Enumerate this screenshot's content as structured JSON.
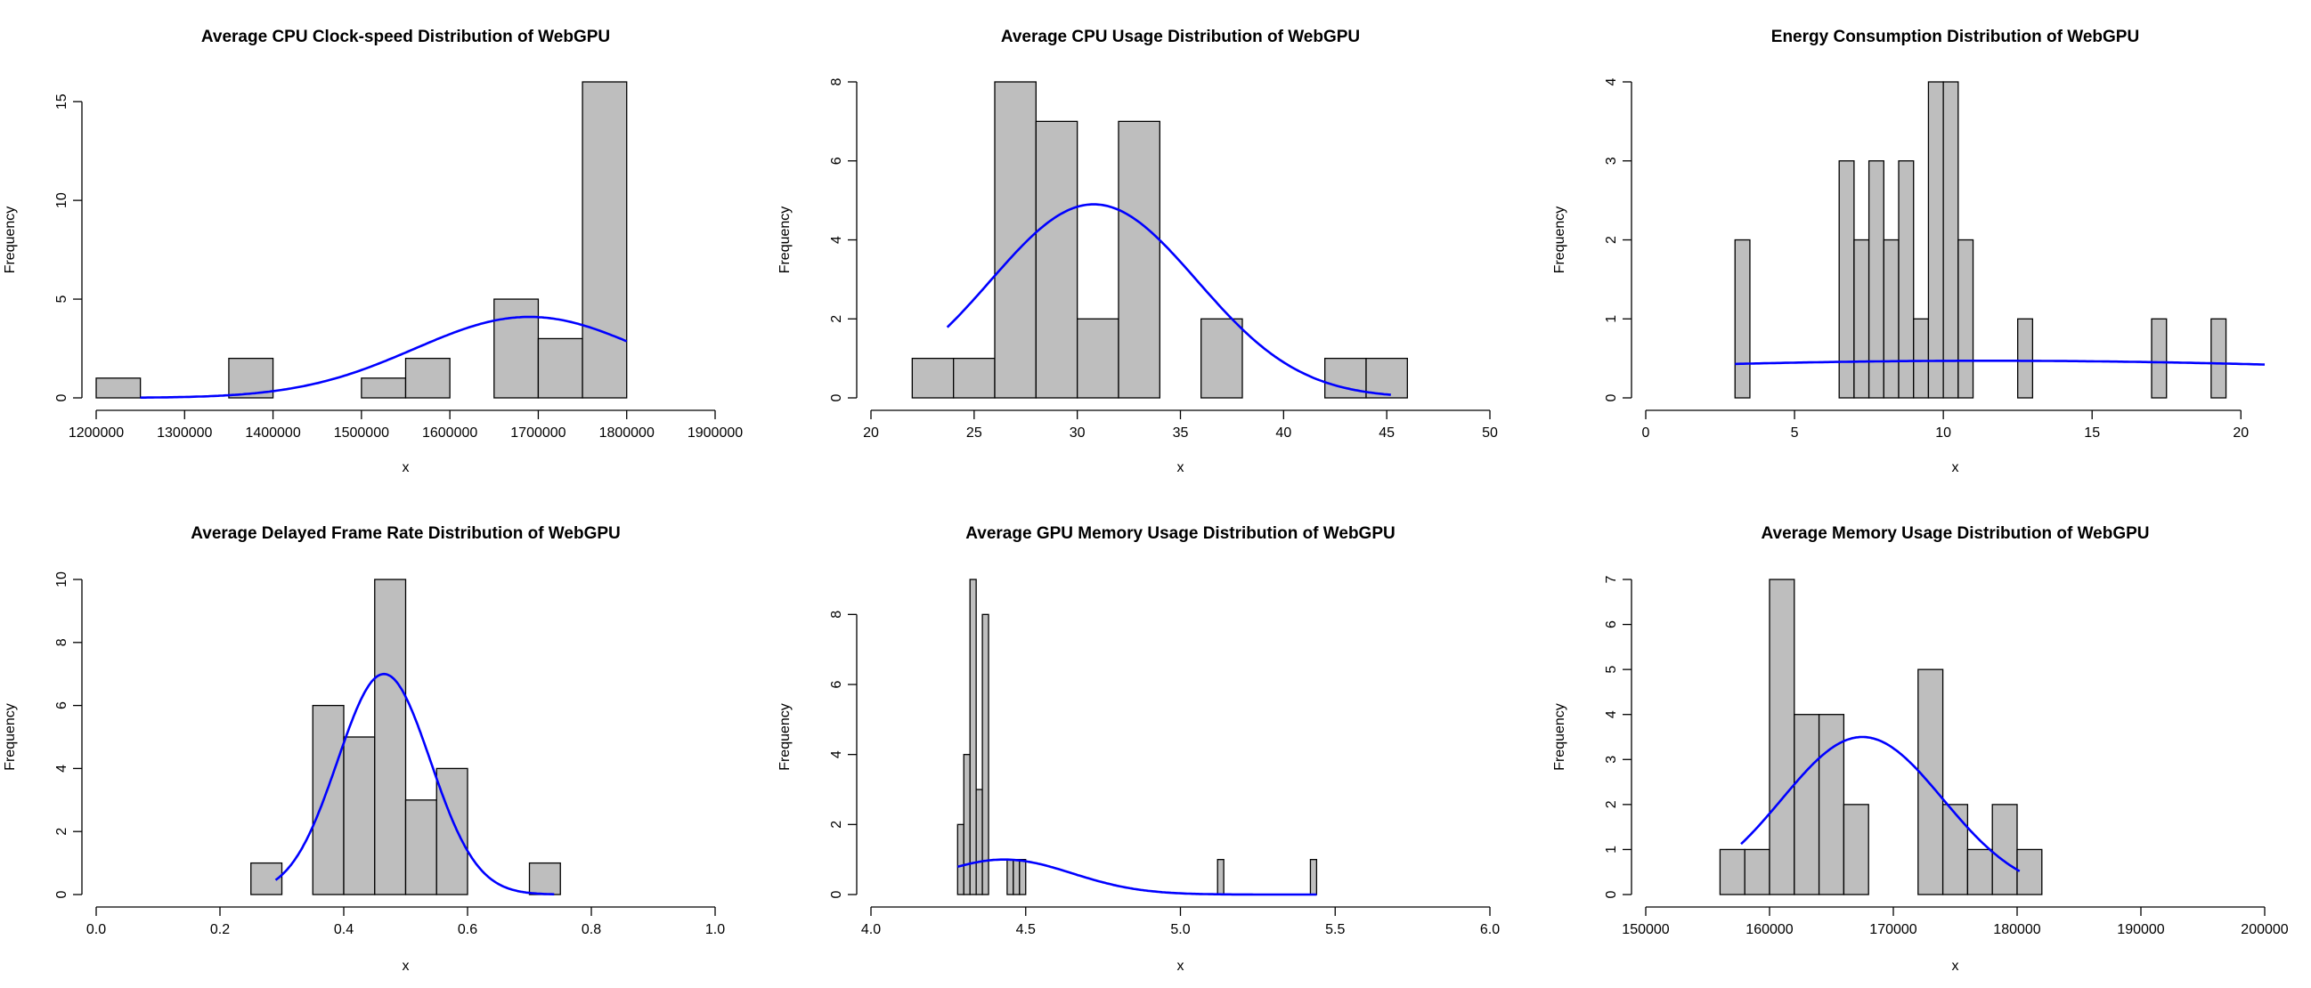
{
  "chart_data": [
    {
      "type": "bar",
      "title": "Average CPU Clock-speed Distribution of WebGPU",
      "xlabel": "x",
      "ylabel": "Frequency",
      "xlim": [
        1200000,
        1900000
      ],
      "ylim": [
        0,
        16
      ],
      "xticks": [
        1200000,
        1300000,
        1400000,
        1500000,
        1600000,
        1700000,
        1800000,
        1900000
      ],
      "yticks": [
        0,
        5,
        10,
        15
      ],
      "bins": [
        {
          "x0": 1200000,
          "x1": 1250000,
          "count": 1
        },
        {
          "x0": 1350000,
          "x1": 1400000,
          "count": 2
        },
        {
          "x0": 1500000,
          "x1": 1550000,
          "count": 1
        },
        {
          "x0": 1550000,
          "x1": 1600000,
          "count": 2
        },
        {
          "x0": 1650000,
          "x1": 1700000,
          "count": 5
        },
        {
          "x0": 1700000,
          "x1": 1750000,
          "count": 3
        },
        {
          "x0": 1750000,
          "x1": 1800000,
          "count": 16
        }
      ],
      "normal_curve": {
        "mean": 1690000,
        "sd": 130000,
        "peak": 4.1,
        "from": 1250000,
        "to": 1800000
      }
    },
    {
      "type": "bar",
      "title": "Average CPU Usage Distribution of WebGPU",
      "xlabel": "x",
      "ylabel": "Frequency",
      "xlim": [
        20,
        50
      ],
      "ylim": [
        0,
        8
      ],
      "xticks": [
        20,
        25,
        30,
        35,
        40,
        45,
        50
      ],
      "yticks": [
        0,
        2,
        4,
        6,
        8
      ],
      "bins": [
        {
          "x0": 22,
          "x1": 24,
          "count": 1
        },
        {
          "x0": 24,
          "x1": 26,
          "count": 1
        },
        {
          "x0": 26,
          "x1": 28,
          "count": 8
        },
        {
          "x0": 28,
          "x1": 30,
          "count": 7
        },
        {
          "x0": 30,
          "x1": 32,
          "count": 2
        },
        {
          "x0": 32,
          "x1": 34,
          "count": 7
        },
        {
          "x0": 36,
          "x1": 38,
          "count": 2
        },
        {
          "x0": 42,
          "x1": 44,
          "count": 1
        },
        {
          "x0": 44,
          "x1": 46,
          "count": 1
        }
      ],
      "normal_curve": {
        "mean": 30.8,
        "sd": 5.0,
        "peak": 4.9,
        "from": 23.7,
        "to": 45.2
      }
    },
    {
      "type": "bar",
      "title": "Energy Consumption Distribution of WebGPU",
      "xlabel": "x",
      "ylabel": "Frequency",
      "xlim": [
        0,
        20.8
      ],
      "ylim": [
        0,
        4
      ],
      "xticks": [
        0,
        5,
        10,
        15,
        20
      ],
      "yticks": [
        0,
        1,
        2,
        3,
        4
      ],
      "bins": [
        {
          "x0": 3.0,
          "x1": 3.5,
          "count": 2
        },
        {
          "x0": 6.5,
          "x1": 7.0,
          "count": 3
        },
        {
          "x0": 7.0,
          "x1": 7.5,
          "count": 2
        },
        {
          "x0": 7.5,
          "x1": 8.0,
          "count": 3
        },
        {
          "x0": 8.0,
          "x1": 8.5,
          "count": 2
        },
        {
          "x0": 8.5,
          "x1": 9.0,
          "count": 3
        },
        {
          "x0": 9.0,
          "x1": 9.5,
          "count": 1
        },
        {
          "x0": 9.5,
          "x1": 10.0,
          "count": 4
        },
        {
          "x0": 10.0,
          "x1": 10.5,
          "count": 4
        },
        {
          "x0": 10.5,
          "x1": 11.0,
          "count": 2
        },
        {
          "x0": 12.5,
          "x1": 13.0,
          "count": 1
        },
        {
          "x0": 17.0,
          "x1": 17.5,
          "count": 1
        },
        {
          "x0": 19.0,
          "x1": 19.5,
          "count": 1
        }
      ],
      "normal_curve": {
        "mean": 11.5,
        "sd": 20.0,
        "peak": 0.47,
        "from": 3.0,
        "to": 20.8
      }
    },
    {
      "type": "bar",
      "title": "Average Delayed Frame Rate Distribution of WebGPU",
      "xlabel": "x",
      "ylabel": "Frequency",
      "xlim": [
        0.0,
        1.0
      ],
      "ylim": [
        0,
        10
      ],
      "xticks": [
        0.0,
        0.2,
        0.4,
        0.6,
        0.8,
        1.0
      ],
      "yticks": [
        0,
        2,
        4,
        6,
        8,
        10
      ],
      "bins": [
        {
          "x0": 0.25,
          "x1": 0.3,
          "count": 1
        },
        {
          "x0": 0.35,
          "x1": 0.4,
          "count": 6
        },
        {
          "x0": 0.4,
          "x1": 0.45,
          "count": 5
        },
        {
          "x0": 0.45,
          "x1": 0.5,
          "count": 10
        },
        {
          "x0": 0.5,
          "x1": 0.55,
          "count": 3
        },
        {
          "x0": 0.55,
          "x1": 0.6,
          "count": 4
        },
        {
          "x0": 0.7,
          "x1": 0.75,
          "count": 1
        }
      ],
      "normal_curve": {
        "mean": 0.465,
        "sd": 0.075,
        "peak": 7.0,
        "from": 0.29,
        "to": 0.74
      }
    },
    {
      "type": "bar",
      "title": "Average GPU Memory Usage Distribution of WebGPU",
      "xlabel": "x",
      "ylabel": "Frequency",
      "xlim": [
        4.0,
        6.0
      ],
      "ylim": [
        0,
        9
      ],
      "xticks": [
        4.0,
        4.5,
        5.0,
        5.5,
        6.0
      ],
      "yticks": [
        0,
        2,
        4,
        6,
        8
      ],
      "bins": [
        {
          "x0": 4.28,
          "x1": 4.3,
          "count": 2
        },
        {
          "x0": 4.3,
          "x1": 4.32,
          "count": 4
        },
        {
          "x0": 4.32,
          "x1": 4.34,
          "count": 9
        },
        {
          "x0": 4.34,
          "x1": 4.36,
          "count": 3
        },
        {
          "x0": 4.36,
          "x1": 4.38,
          "count": 8
        },
        {
          "x0": 4.44,
          "x1": 4.46,
          "count": 1
        },
        {
          "x0": 4.46,
          "x1": 4.48,
          "count": 1
        },
        {
          "x0": 4.48,
          "x1": 4.5,
          "count": 1
        },
        {
          "x0": 5.12,
          "x1": 5.14,
          "count": 1
        },
        {
          "x0": 5.42,
          "x1": 5.44,
          "count": 1
        }
      ],
      "normal_curve": {
        "mean": 4.43,
        "sd": 0.22,
        "peak": 1.0,
        "from": 4.28,
        "to": 5.44
      }
    },
    {
      "type": "bar",
      "title": "Average Memory Usage Distribution of WebGPU",
      "xlabel": "x",
      "ylabel": "Frequency",
      "xlim": [
        150000,
        200000
      ],
      "ylim": [
        0,
        7
      ],
      "xticks": [
        150000,
        160000,
        170000,
        180000,
        190000,
        200000
      ],
      "yticks": [
        0,
        1,
        2,
        3,
        4,
        5,
        6,
        7
      ],
      "bins": [
        {
          "x0": 156000,
          "x1": 158000,
          "count": 1
        },
        {
          "x0": 158000,
          "x1": 160000,
          "count": 1
        },
        {
          "x0": 160000,
          "x1": 162000,
          "count": 7
        },
        {
          "x0": 162000,
          "x1": 164000,
          "count": 4
        },
        {
          "x0": 164000,
          "x1": 166000,
          "count": 4
        },
        {
          "x0": 166000,
          "x1": 168000,
          "count": 2
        },
        {
          "x0": 172000,
          "x1": 174000,
          "count": 5
        },
        {
          "x0": 174000,
          "x1": 176000,
          "count": 2
        },
        {
          "x0": 176000,
          "x1": 178000,
          "count": 1
        },
        {
          "x0": 178000,
          "x1": 180000,
          "count": 2
        },
        {
          "x0": 180000,
          "x1": 182000,
          "count": 1
        }
      ],
      "normal_curve": {
        "mean": 167500,
        "sd": 6500,
        "peak": 3.5,
        "from": 157700,
        "to": 180200
      }
    }
  ]
}
